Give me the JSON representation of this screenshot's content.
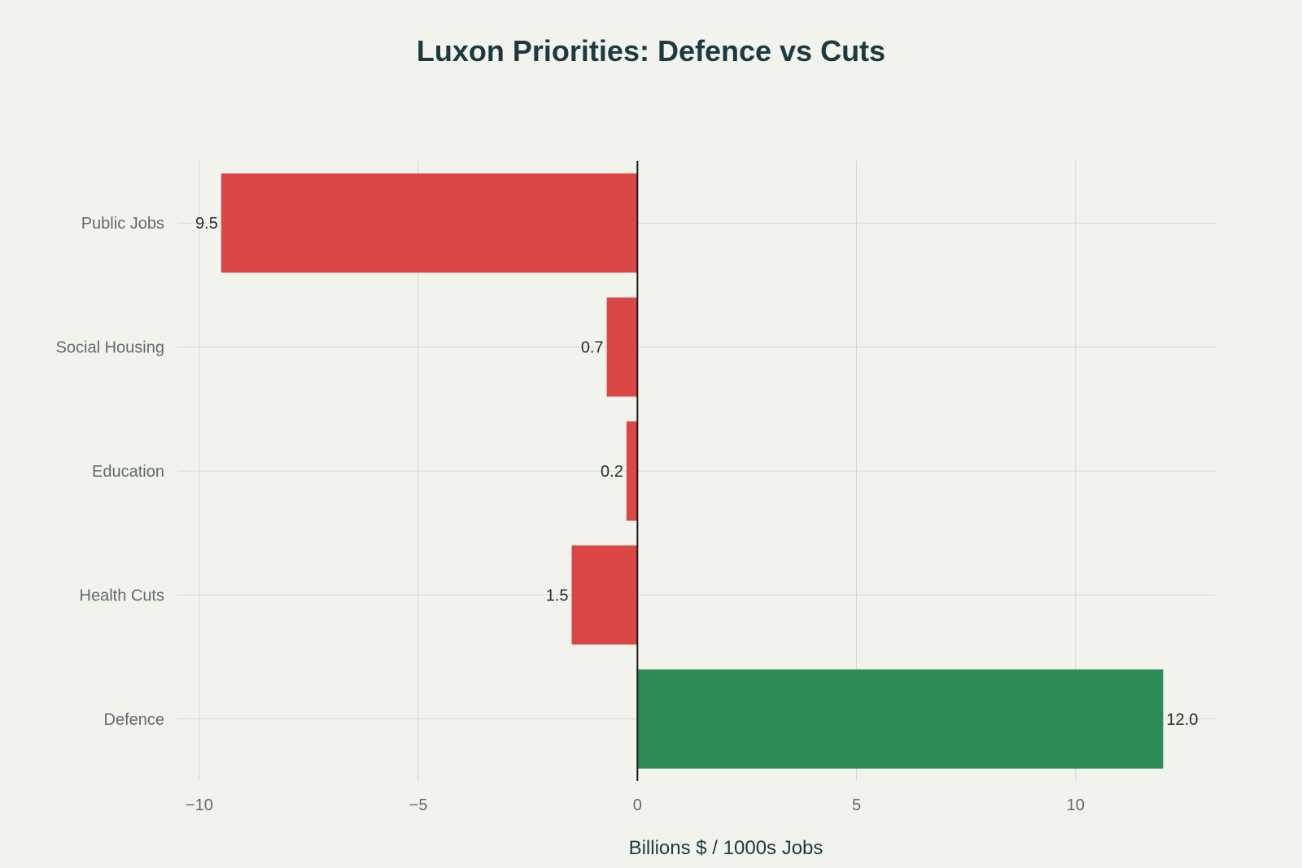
{
  "chart_data": {
    "type": "bar",
    "orientation": "horizontal",
    "title": "Luxon Priorities: Defence vs Cuts",
    "xlabel": "Billions $ / 1000s Jobs",
    "ylabel": "",
    "xlim": [
      -10.5,
      13.2
    ],
    "x_ticks": [
      -10,
      -5,
      0,
      5,
      10
    ],
    "x_tick_labels": [
      "−10",
      "−5",
      "0",
      "5",
      "10"
    ],
    "grid": true,
    "categories": [
      "Public Jobs",
      "Social Housing",
      "Education",
      "Health Cuts",
      "Defence"
    ],
    "values": [
      -9.5,
      -0.7,
      -0.25,
      -1.5,
      12.0
    ],
    "data_labels": [
      "9.5",
      "0.7",
      "0.2",
      "1.5",
      "12.0"
    ],
    "colors": {
      "negative": "#db4646",
      "positive": "#2e8b57",
      "grid": "#d6d8d3",
      "zero_line": "#1a1a1a"
    }
  }
}
